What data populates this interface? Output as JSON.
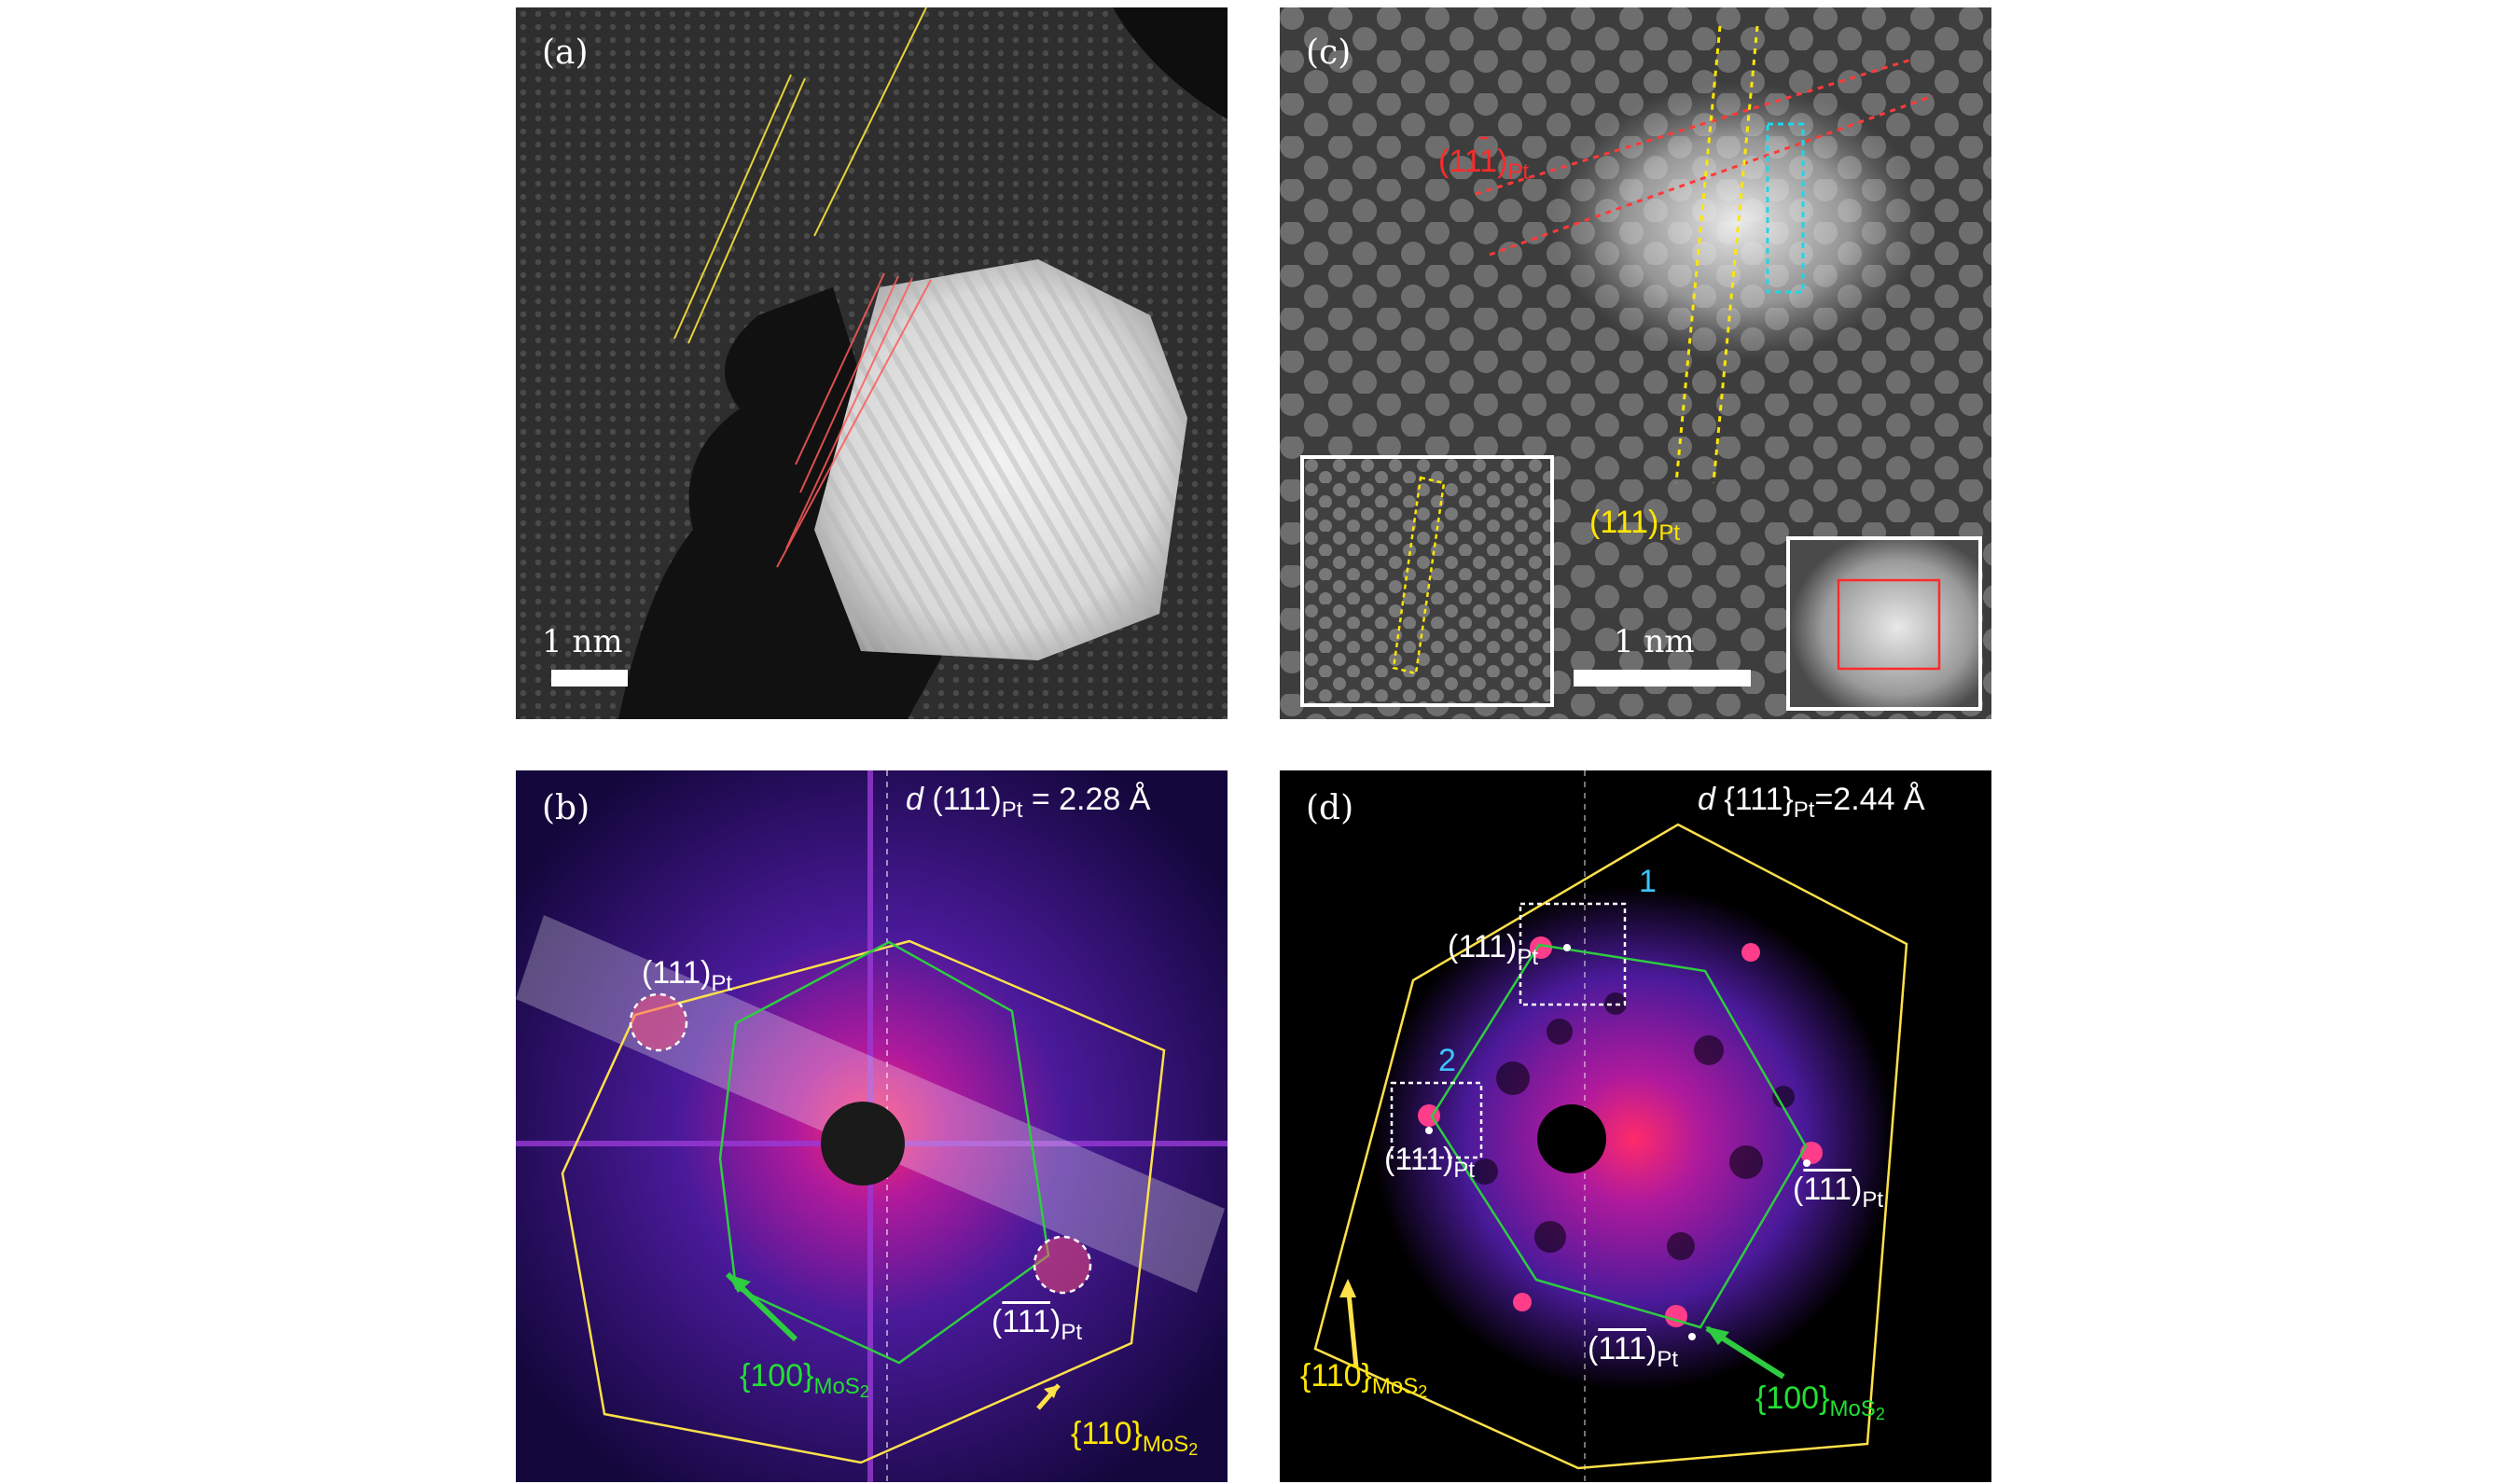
{
  "panels": {
    "a": {
      "label": "(a)",
      "scale": "1 nm"
    },
    "b": {
      "label": "(b)",
      "d_prefix": "d",
      "d_text": " (111)",
      "d_sub": "Pt",
      "d_value": " = 2.28 Å",
      "spot_upper": {
        "text": "(111)",
        "sub": "Pt"
      },
      "spot_lower": {
        "text": "111",
        "pre": "(",
        "post": ")",
        "sub": "Pt"
      },
      "green_label": {
        "text": "{100}",
        "sub": "MoS",
        "sub2": "2"
      },
      "yellow_label": {
        "text": "{110}",
        "sub": "MoS",
        "sub2": "2"
      }
    },
    "c": {
      "label": "(c)",
      "scale": "1 nm",
      "red_label": {
        "text": "(111",
        "bar": "̄",
        "close": ")",
        "sub": "Pt"
      },
      "yellow_label": {
        "text": "(111)",
        "sub": "Pt"
      }
    },
    "d": {
      "label": "(d)",
      "d_prefix": "d",
      "d_text": " {111}",
      "d_sub": "Pt",
      "d_value": "=2.44  Å",
      "box1": "1",
      "box2": "2",
      "spot_top": {
        "text": "(111",
        "close": ")",
        "sub": "Pt"
      },
      "spot_left": {
        "text": "(111)",
        "sub": "Pt"
      },
      "spot_right": {
        "text": "111",
        "pre": "(",
        "post": ")",
        "sub": "Pt"
      },
      "spot_bottom": {
        "text": "111",
        "pre": "(",
        "post": ")",
        "sub": "Pt"
      },
      "green_label": {
        "text": "{100}",
        "sub": "MoS",
        "sub2": "2"
      },
      "yellow_label": {
        "text": "{110}",
        "sub": "MoS",
        "sub2": "2"
      }
    }
  },
  "colors": {
    "hexagon_yellow": "#ffe14a",
    "hexagon_green": "#2ecc40",
    "fft_bg": "#120438",
    "fft_glow": "#c0178f"
  }
}
